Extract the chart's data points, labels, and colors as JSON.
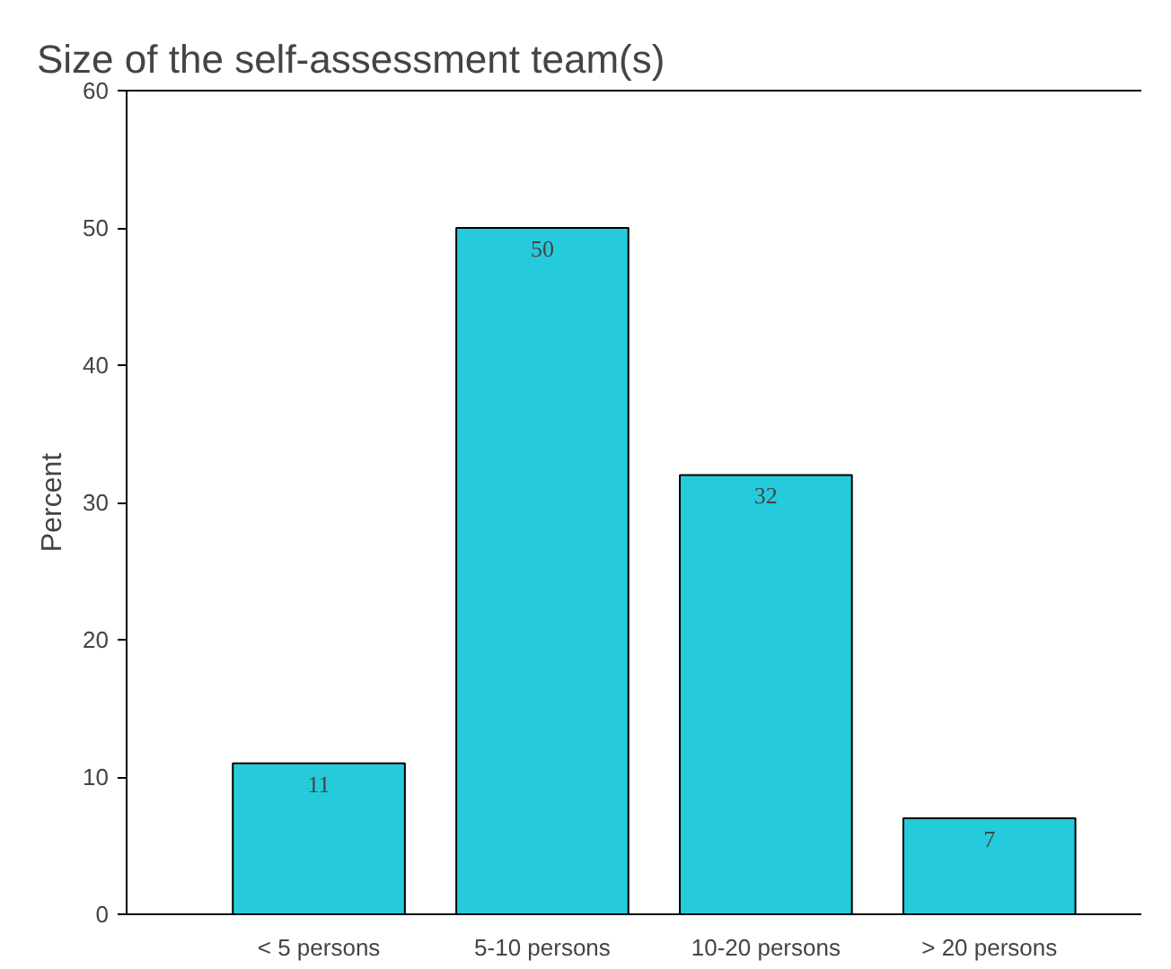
{
  "chart_data": {
    "type": "bar",
    "title": "Size of the self-assessment team(s)",
    "ylabel": "Percent",
    "categories": [
      "< 5 persons",
      "5-10 persons",
      "10-20 persons",
      "> 20 persons"
    ],
    "values": [
      11,
      50,
      32,
      7
    ],
    "color": "#26cbdb",
    "ylim": [
      0,
      60
    ],
    "yticks": [
      0,
      10,
      20,
      30,
      40,
      50,
      60
    ],
    "grid": false,
    "data_labels": true
  }
}
